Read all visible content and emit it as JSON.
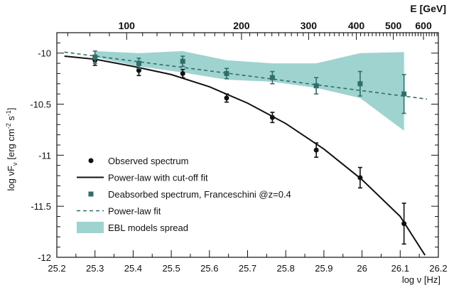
{
  "chart_data": {
    "type": "scatter",
    "x_axis": {
      "label": "log ν [Hz]",
      "range": [
        25.2,
        26.2
      ],
      "ticks": [
        25.2,
        25.3,
        25.4,
        25.5,
        25.6,
        25.7,
        25.8,
        25.9,
        26.0,
        26.1,
        26.2
      ],
      "tick_labels": [
        "25.2",
        "25.3",
        "25.4",
        "25.5",
        "25.6",
        "25.7",
        "25.8",
        "25.9",
        "26",
        "26.1",
        "26.2"
      ]
    },
    "top_axis": {
      "label": "E [GeV]",
      "ticks": [
        100,
        200,
        300,
        400,
        500,
        600
      ],
      "tick_labels": [
        "100",
        "200",
        "300",
        "400",
        "500",
        "600"
      ],
      "tick_positions_logv": [
        25.383,
        25.684,
        25.86,
        25.985,
        26.082,
        26.161
      ]
    },
    "y_axis": {
      "label_base": "log νF",
      "label_sub": "ν",
      "label_units": "[erg cm",
      "label_sup1": "-2",
      "label_mid": " s",
      "label_sup2": "-1",
      "label_end": "]",
      "range": [
        -12.0,
        -9.8
      ],
      "ticks": [
        -10,
        -10.5,
        -11,
        -11.5,
        -12
      ],
      "tick_labels": [
        "-10",
        "-10.5",
        "-11",
        "-11.5",
        "-12"
      ]
    },
    "grid": false,
    "legend_position": "bottom-left",
    "legend": [
      {
        "label": "Observed spectrum",
        "style": "circle"
      },
      {
        "label": "Power-law with cut-off fit",
        "style": "solid-line"
      },
      {
        "label": "Deabsorbed spectrum, Franceschini @z=0.4",
        "style": "square"
      },
      {
        "label": "Power-law fit",
        "style": "dashed-line"
      },
      {
        "label": "EBL models spread",
        "style": "band"
      }
    ],
    "series": [
      {
        "name": "Observed spectrum",
        "marker": "circle",
        "color": "#111111",
        "points": [
          {
            "x": 25.3,
            "y": -10.07,
            "err": 0.05
          },
          {
            "x": 25.415,
            "y": -10.17,
            "err": 0.05
          },
          {
            "x": 25.53,
            "y": -10.2,
            "err": 0.04
          },
          {
            "x": 25.645,
            "y": -10.44,
            "err": 0.04
          },
          {
            "x": 25.765,
            "y": -10.63,
            "err": 0.05
          },
          {
            "x": 25.88,
            "y": -10.95,
            "err": 0.07
          },
          {
            "x": 25.995,
            "y": -11.22,
            "err": 0.1
          },
          {
            "x": 26.11,
            "y": -11.67,
            "err": 0.2
          }
        ]
      },
      {
        "name": "Deabsorbed spectrum, Franceschini @z=0.4",
        "marker": "square",
        "color": "#2f6f6a",
        "points": [
          {
            "x": 25.3,
            "y": -10.04,
            "err": 0.06
          },
          {
            "x": 25.415,
            "y": -10.1,
            "err": 0.05
          },
          {
            "x": 25.53,
            "y": -10.08,
            "err": 0.05
          },
          {
            "x": 25.645,
            "y": -10.2,
            "err": 0.05
          },
          {
            "x": 25.765,
            "y": -10.24,
            "err": 0.06
          },
          {
            "x": 25.88,
            "y": -10.32,
            "err": 0.08
          },
          {
            "x": 25.995,
            "y": -10.3,
            "err": 0.12
          },
          {
            "x": 26.11,
            "y": -10.4,
            "err": 0.19
          }
        ]
      }
    ],
    "fits": [
      {
        "name": "Power-law with cut-off fit",
        "style": "solid",
        "color": "#111111",
        "points": [
          [
            25.22,
            -10.03
          ],
          [
            25.3,
            -10.06
          ],
          [
            25.4,
            -10.13
          ],
          [
            25.5,
            -10.21
          ],
          [
            25.6,
            -10.33
          ],
          [
            25.7,
            -10.49
          ],
          [
            25.8,
            -10.69
          ],
          [
            25.9,
            -10.94
          ],
          [
            26.0,
            -11.24
          ],
          [
            26.1,
            -11.6
          ],
          [
            26.165,
            -11.98
          ]
        ]
      },
      {
        "name": "Power-law fit",
        "style": "dashed",
        "color": "#2f6f6a",
        "points": [
          [
            25.22,
            -9.99
          ],
          [
            26.17,
            -10.45
          ]
        ]
      }
    ],
    "band": {
      "name": "EBL models spread",
      "color": "#9fd3d0",
      "x": [
        25.3,
        25.415,
        25.53,
        25.645,
        25.765,
        25.88,
        25.995,
        26.11
      ],
      "upper": [
        -9.98,
        -10.0,
        -9.98,
        -10.07,
        -10.1,
        -10.1,
        -10.0,
        -9.99
      ],
      "lower": [
        -10.04,
        -10.13,
        -10.19,
        -10.26,
        -10.28,
        -10.34,
        -10.44,
        -10.76
      ]
    }
  }
}
